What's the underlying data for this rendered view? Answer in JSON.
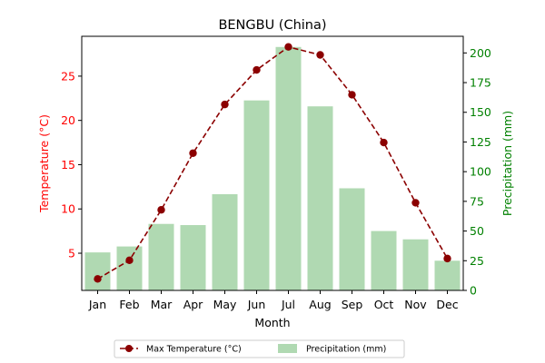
{
  "chart_data": {
    "type": "bar",
    "title": "BENGBU (China)",
    "xlabel": "Month",
    "categories": [
      "Jan",
      "Feb",
      "Mar",
      "Apr",
      "May",
      "Jun",
      "Jul",
      "Aug",
      "Sep",
      "Oct",
      "Nov",
      "Dec"
    ],
    "series": [
      {
        "name": "Max Temperature (°C)",
        "type": "line",
        "axis": "left",
        "color": "#8b0000",
        "values": [
          2.1,
          4.2,
          9.9,
          16.3,
          21.8,
          25.7,
          28.3,
          27.4,
          22.9,
          17.5,
          10.7,
          4.4
        ]
      },
      {
        "name": "Precipitation (mm)",
        "type": "bar",
        "axis": "right",
        "color": "#b0d9b2",
        "values": [
          32,
          37,
          56,
          55,
          81,
          160,
          205,
          155,
          86,
          50,
          43,
          25
        ]
      }
    ],
    "y_left": {
      "label": "Temperature (°C)",
      "color": "#ff0000",
      "ylim": [
        0.8,
        29.5
      ],
      "ticks": [
        5,
        10,
        15,
        20,
        25
      ]
    },
    "y_right": {
      "label": "Precipitation (mm)",
      "color": "#008000",
      "ylim": [
        0,
        214
      ],
      "ticks": [
        0,
        25,
        50,
        75,
        100,
        125,
        150,
        175,
        200
      ]
    },
    "legend": {
      "position": "bottom-center",
      "columns": 2
    },
    "grid": false
  }
}
